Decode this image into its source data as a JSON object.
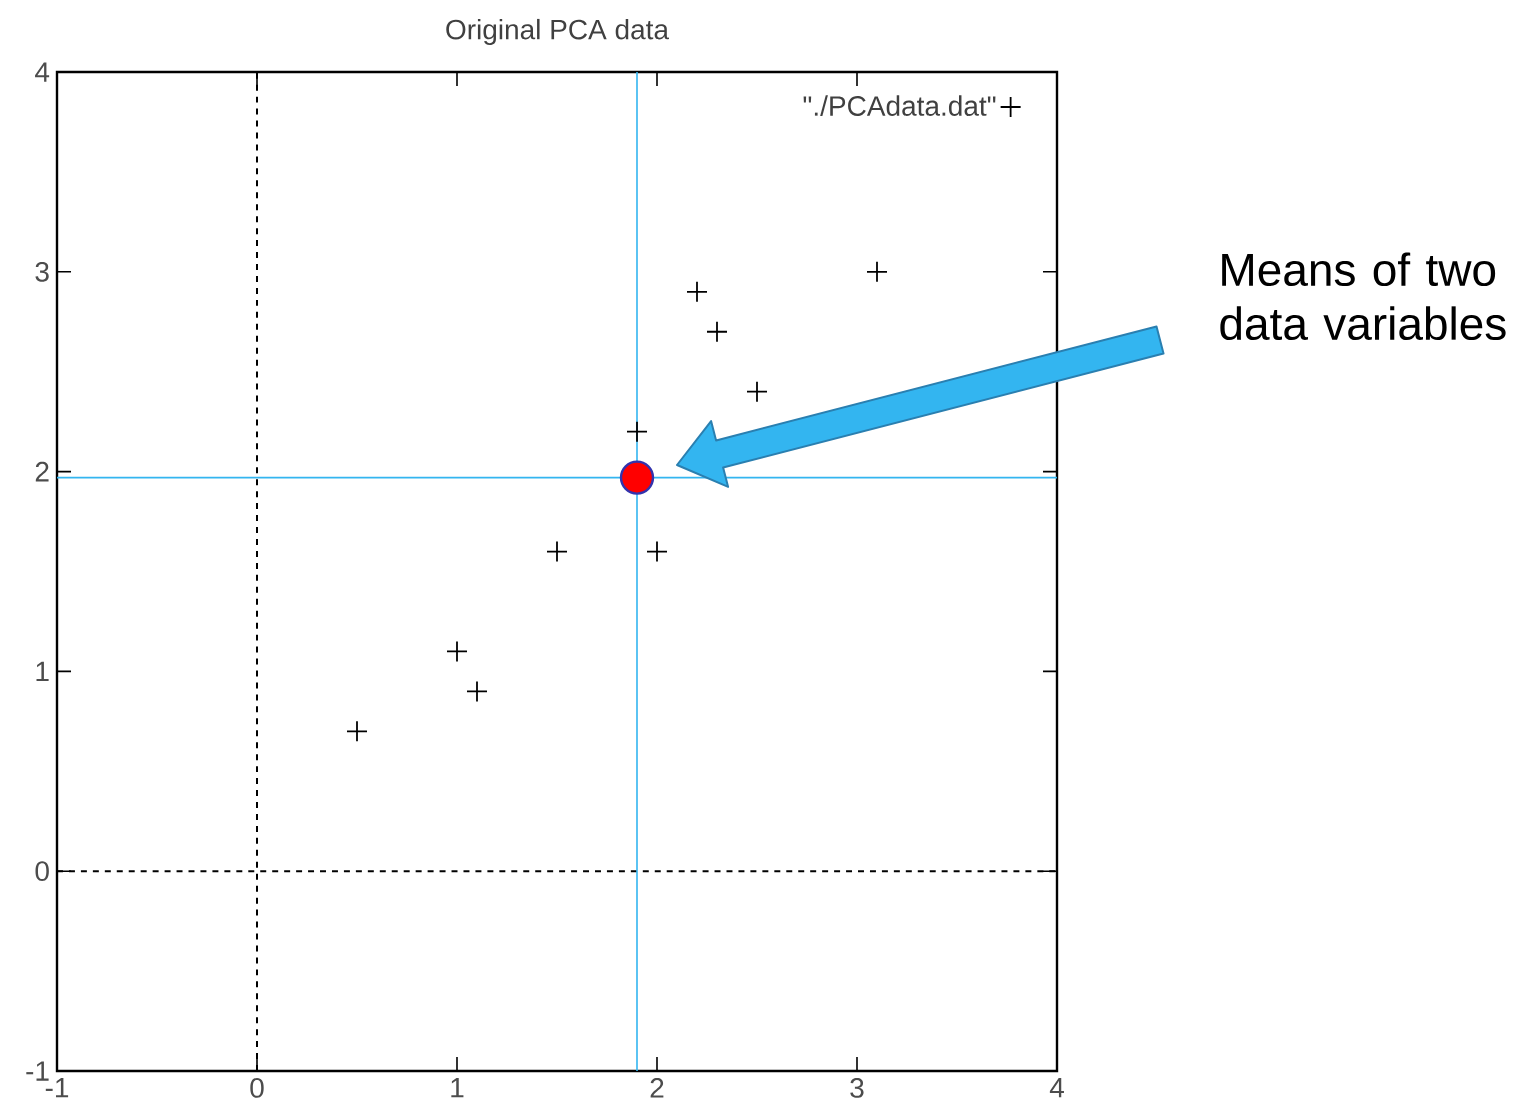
{
  "chart_data": {
    "type": "scatter",
    "title": "Original PCA data",
    "xlim": [
      -1,
      4
    ],
    "ylim": [
      -1,
      4
    ],
    "xticks": [
      -1,
      0,
      1,
      2,
      3,
      4
    ],
    "yticks": [
      -1,
      0,
      1,
      2,
      3,
      4
    ],
    "legend": "top right",
    "grid": false,
    "series": [
      {
        "name": "\"./PCAdata.dat\"",
        "color": "#000000",
        "marker": "cross",
        "x": [
          2.5,
          0.5,
          2.2,
          1.9,
          3.1,
          2.3,
          2.0,
          1.0,
          1.5,
          1.1
        ],
        "values": [
          2.4,
          0.7,
          2.9,
          2.2,
          3.0,
          2.7,
          1.6,
          1.1,
          1.6,
          0.9
        ]
      },
      {
        "color": "#ff0000",
        "marker": "circle",
        "x": [
          1.9
        ],
        "values": [
          1.97
        ]
      }
    ],
    "ref_lines": [
      {
        "axis": "x",
        "value": 0,
        "color": "#000000",
        "line_style": "dashed"
      },
      {
        "axis": "y",
        "value": 0,
        "color": "#000000",
        "line_style": "dashed"
      },
      {
        "axis": "x",
        "value": 1.9,
        "color": "#33b5f0",
        "line_style": "solid"
      },
      {
        "axis": "y",
        "value": 1.97,
        "color": "#33b5f0",
        "line_style": "solid"
      }
    ],
    "annotations": [
      "Means of two data variables"
    ]
  }
}
